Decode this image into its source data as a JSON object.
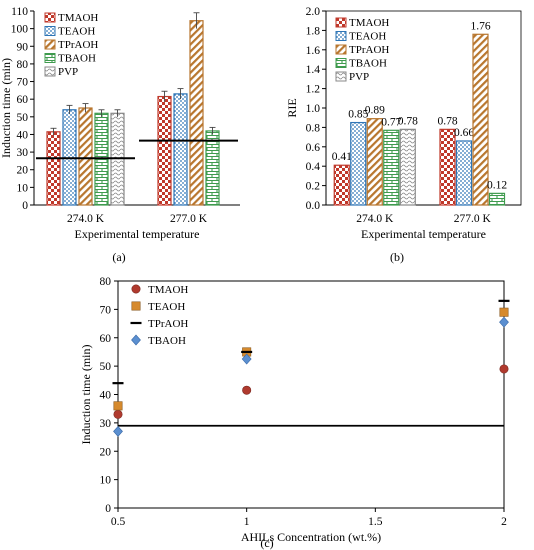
{
  "panels": {
    "a": {
      "label": "(a)"
    },
    "b": {
      "label": "(b)"
    },
    "c": {
      "label": "(c)"
    }
  },
  "chart_data": [
    {
      "type": "bar",
      "panel": "a",
      "ylabel": "Induction time (min)",
      "xlabel": "Experimental temperature",
      "ylim": [
        0,
        110
      ],
      "yticks": [
        0,
        10,
        20,
        30,
        40,
        50,
        60,
        70,
        80,
        90,
        100,
        110
      ],
      "categories": [
        "274.0 K",
        "277.0 K"
      ],
      "legend_position": "top-left",
      "series": [
        {
          "name": "TMAOH",
          "values": [
            41.5,
            61.5
          ],
          "errors": [
            2,
            3
          ],
          "color": "#c0392b",
          "pattern": "checker"
        },
        {
          "name": "TEAOH",
          "values": [
            54,
            63
          ],
          "errors": [
            2.5,
            3
          ],
          "color": "#2e75b6",
          "pattern": "dots"
        },
        {
          "name": "TPrAOH",
          "values": [
            55,
            104.5
          ],
          "errors": [
            2.5,
            4.5
          ],
          "color": "#b8762e",
          "pattern": "diagonal"
        },
        {
          "name": "TBAOH",
          "values": [
            52,
            42
          ],
          "errors": [
            2,
            2
          ],
          "color": "#3f9b4e",
          "pattern": "brick"
        },
        {
          "name": "PVP",
          "values": [
            52,
            null
          ],
          "errors": [
            2,
            null
          ],
          "color": "#888888",
          "pattern": "wave"
        }
      ],
      "reference_lines": [
        {
          "category": "274.0 K",
          "value": 26.5
        },
        {
          "category": "277.0 K",
          "value": 36.5
        }
      ],
      "grid": false
    },
    {
      "type": "bar",
      "panel": "b",
      "ylabel": "RIE",
      "xlabel": "Experimental temperature",
      "ylim": [
        0,
        2.0
      ],
      "yticks": [
        "0.0",
        "0.2",
        "0.4",
        "0.6",
        "0.8",
        "1.0",
        "1.2",
        "1.4",
        "1.6",
        "1.8",
        "2.0"
      ],
      "categories": [
        "274.0 K",
        "277.0 K"
      ],
      "legend_position": "top-left",
      "series": [
        {
          "name": "TMAOH",
          "values": [
            0.41,
            0.78
          ],
          "labels": [
            "0.41",
            "0.78"
          ],
          "color": "#c0392b",
          "pattern": "checker"
        },
        {
          "name": "TEAOH",
          "values": [
            0.85,
            0.66
          ],
          "labels": [
            "0.85",
            "0.66"
          ],
          "color": "#2e75b6",
          "pattern": "dots"
        },
        {
          "name": "TPrAOH",
          "values": [
            0.89,
            1.76
          ],
          "labels": [
            "0.89",
            "1.76"
          ],
          "color": "#b8762e",
          "pattern": "diagonal"
        },
        {
          "name": "TBAOH",
          "values": [
            0.77,
            0.12
          ],
          "labels": [
            "0.77",
            "0.12"
          ],
          "color": "#3f9b4e",
          "pattern": "brick"
        },
        {
          "name": "PVP",
          "values": [
            0.78,
            null
          ],
          "labels": [
            "0.78",
            ""
          ],
          "color": "#888888",
          "pattern": "wave"
        }
      ],
      "grid": false
    },
    {
      "type": "scatter",
      "panel": "c",
      "ylabel": "Induction time (min)",
      "xlabel": "AHILs Concentration (wt.%)",
      "xlim": [
        0.5,
        2
      ],
      "ylim": [
        0,
        80
      ],
      "xticks": [
        "0.5",
        "1",
        "1.5",
        "2"
      ],
      "yticks": [
        0,
        10,
        20,
        30,
        40,
        50,
        60,
        70,
        80
      ],
      "legend_position": "top-left",
      "series": [
        {
          "name": "TMAOH",
          "marker": "circle",
          "color": "#b03a2e",
          "x": [
            0.5,
            1,
            2
          ],
          "y": [
            33,
            41.5,
            49
          ]
        },
        {
          "name": "TEAOH",
          "marker": "square",
          "color": "#d68a2e",
          "x": [
            0.5,
            1,
            2
          ],
          "y": [
            36,
            55,
            69
          ]
        },
        {
          "name": "TPrAOH",
          "marker": "dash",
          "color": "#000000",
          "x": [
            0.5,
            1,
            2
          ],
          "y": [
            44,
            55,
            73
          ]
        },
        {
          "name": "TBAOH",
          "marker": "diamond",
          "color": "#5b8fd0",
          "x": [
            0.5,
            1,
            2
          ],
          "y": [
            27,
            52.5,
            65.5
          ]
        }
      ],
      "reference_line": 29,
      "grid": false
    }
  ]
}
